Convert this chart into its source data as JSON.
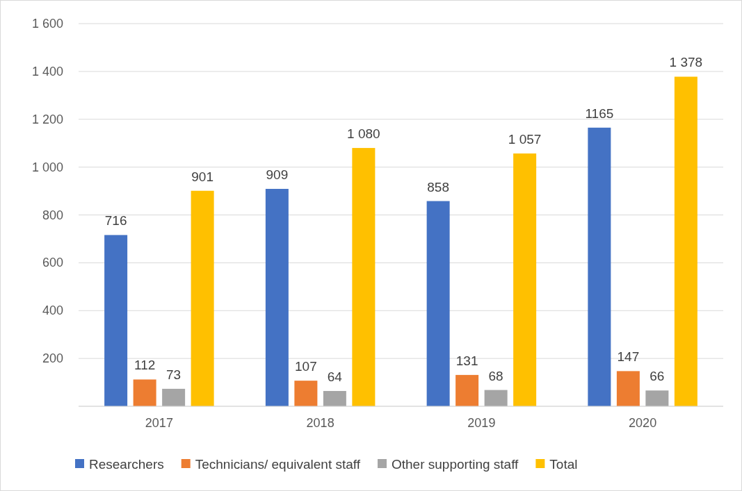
{
  "chart_data": {
    "type": "bar",
    "categories": [
      "2017",
      "2018",
      "2019",
      "2020"
    ],
    "series": [
      {
        "name": "Researchers",
        "color": "#4472c4",
        "values": [
          716,
          909,
          858,
          1165
        ],
        "value_labels": [
          "716",
          "909",
          "858",
          "1165"
        ]
      },
      {
        "name": "Technicians/ equivalent staff",
        "color": "#ed7d31",
        "values": [
          112,
          107,
          131,
          147
        ],
        "value_labels": [
          "112",
          "107",
          "131",
          "147"
        ]
      },
      {
        "name": "Other supporting staff",
        "color": "#a5a5a5",
        "values": [
          73,
          64,
          68,
          66
        ],
        "value_labels": [
          "73",
          "64",
          "68",
          "66"
        ]
      },
      {
        "name": "Total",
        "color": "#ffc000",
        "values": [
          901,
          1080,
          1057,
          1378
        ],
        "value_labels": [
          "901",
          "1 080",
          "1 057",
          "1 378"
        ]
      }
    ],
    "ylim": [
      0,
      1600
    ],
    "yticks": [
      {
        "value": 0,
        "label": null
      },
      200,
      400,
      600,
      800,
      {
        "value": 1000,
        "label": "1 000"
      },
      {
        "value": 1200,
        "label": "1 200"
      },
      {
        "value": 1400,
        "label": "1 400"
      },
      {
        "value": 1600,
        "label": "1 600"
      }
    ],
    "grid": "y",
    "legend": "bottom"
  }
}
